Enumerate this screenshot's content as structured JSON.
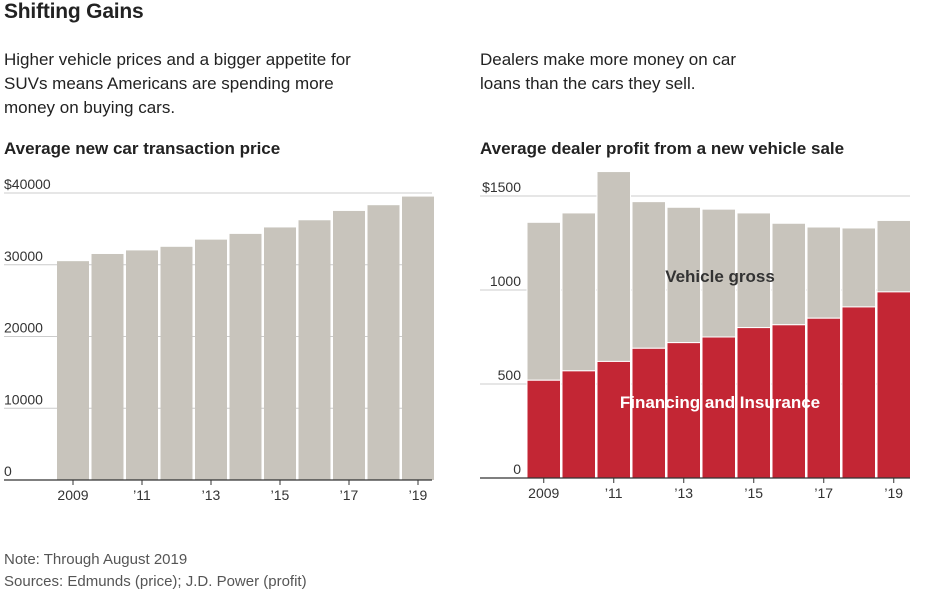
{
  "title": "Shifting Gains",
  "left_subtitle": "Higher vehicle prices and a bigger appetite for SUVs means Americans are spending more money on buying cars.",
  "right_subtitle": "Dealers make more money on car loans than the cars they sell.",
  "note": "Note: Through August 2019",
  "sources": "Sources: Edmunds (price); J.D. Power (profit)",
  "colors": {
    "gray": "#c8c4bc",
    "red": "#c32634",
    "gridline": "#cccccc",
    "axis": "#333333"
  },
  "chart_data": [
    {
      "type": "bar",
      "title": "Average new car transaction price",
      "categories": [
        "2009",
        "2010",
        "2011",
        "2012",
        "2013",
        "2014",
        "2015",
        "2016",
        "2017",
        "2018",
        "2019"
      ],
      "tick_labels": [
        "2009",
        "’11",
        "’13",
        "’15",
        "’17",
        "’19"
      ],
      "tick_indices": [
        0,
        2,
        4,
        6,
        8,
        10
      ],
      "y_tick_labels": [
        "$40000",
        "30000",
        "20000",
        "10000",
        "0"
      ],
      "y_ticks": [
        40000,
        30000,
        20000,
        10000,
        0
      ],
      "values": [
        30500,
        31500,
        32000,
        32500,
        33500,
        34300,
        35200,
        36200,
        37500,
        38300,
        39500
      ],
      "ylim": [
        0,
        40000
      ]
    },
    {
      "type": "bar",
      "stacked": true,
      "title": "Average dealer profit from a new vehicle sale",
      "categories": [
        "2009",
        "2010",
        "2011",
        "2012",
        "2013",
        "2014",
        "2015",
        "2016",
        "2017",
        "2018",
        "2019"
      ],
      "tick_labels": [
        "2009",
        "’11",
        "’13",
        "’15",
        "’17",
        "’19"
      ],
      "tick_indices": [
        0,
        2,
        4,
        6,
        8,
        10
      ],
      "y_tick_labels": [
        "$1500",
        "1000",
        "500",
        "0"
      ],
      "y_ticks": [
        1500,
        1000,
        500,
        0
      ],
      "ylim": [
        0,
        1500
      ],
      "series": [
        {
          "name": "Financing and Insurance",
          "color": "#c32634",
          "values": [
            520,
            570,
            620,
            690,
            720,
            750,
            800,
            815,
            850,
            910,
            990
          ]
        },
        {
          "name": "Vehicle gross",
          "color": "#c8c4bc",
          "values": [
            840,
            840,
            1010,
            780,
            720,
            680,
            610,
            540,
            485,
            420,
            380
          ]
        }
      ]
    }
  ]
}
